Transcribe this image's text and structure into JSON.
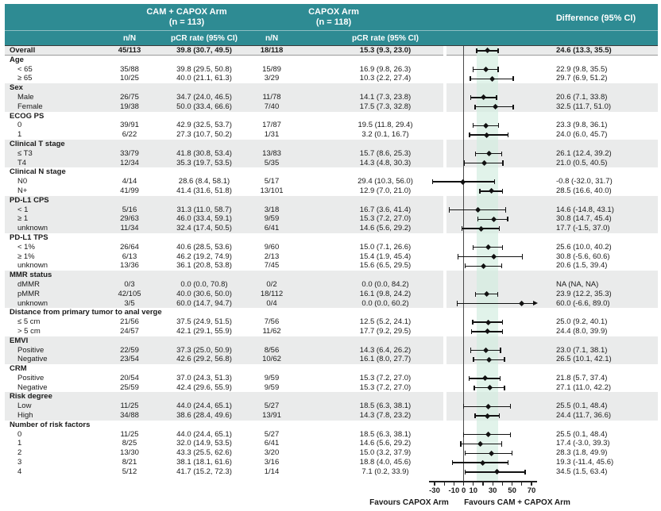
{
  "header": {
    "arm1": {
      "title": "CAM + CAPOX Arm",
      "n": "(n = 113)"
    },
    "arm2": {
      "title": "CAPOX Arm",
      "n": "(n = 118)"
    },
    "difference_title": "Difference (95% CI)",
    "subcolumns": {
      "n_over_N": "n/N",
      "pcr_rate": "pCR rate (95% CI)"
    }
  },
  "colors": {
    "header_teal": "#2e8b93",
    "row_shade": "#eaebeb",
    "overall_ci_band": "#d1ecde",
    "marker_black": "#111111",
    "zero_line_gray": "#4a4a4a"
  },
  "chart_data": {
    "type": "scatter",
    "variant": "forest_plot_subgroup_analysis",
    "x_axis": {
      "range": [
        -30,
        70
      ],
      "labeled_ticks": [
        -30,
        -10,
        0,
        10,
        30,
        50,
        70
      ],
      "minor_tick_step": 10,
      "reference_line_x": 0,
      "overall_ci_band": [
        13.3,
        35.5
      ]
    },
    "footer_labels": {
      "left": "Favours CAPOX Arm",
      "right": "Favours CAM + CAPOX Arm"
    },
    "rows": [
      {
        "kind": "data",
        "label": "Overall",
        "indent": false,
        "bold": true,
        "shade": true,
        "nN1": "45/113",
        "pcr1": "39.8 (30.7, 49.5)",
        "nN2": "18/118",
        "pcr2": "15.3 (9.3, 23.0)",
        "diff": "24.6 (13.3, 35.5)",
        "est": 24.6,
        "lo": 13.3,
        "hi": 35.5
      },
      {
        "kind": "group",
        "label": "Age",
        "shade": false
      },
      {
        "kind": "data",
        "label": "< 65",
        "indent": true,
        "shade": false,
        "nN1": "35/88",
        "pcr1": "39.8 (29.5, 50.8)",
        "nN2": "15/89",
        "pcr2": "16.9 (9.8, 26.3)",
        "diff": "22.9 (9.8, 35.5)",
        "est": 22.9,
        "lo": 9.8,
        "hi": 35.5
      },
      {
        "kind": "data",
        "label": "≥ 65",
        "indent": true,
        "shade": false,
        "nN1": "10/25",
        "pcr1": "40.0 (21.1, 61.3)",
        "nN2": "3/29",
        "pcr2": "10.3 (2.2, 27.4)",
        "diff": "29.7 (6.9, 51.2)",
        "est": 29.7,
        "lo": 6.9,
        "hi": 51.2
      },
      {
        "kind": "group",
        "label": "Sex",
        "shade": true
      },
      {
        "kind": "data",
        "label": "Male",
        "indent": true,
        "shade": true,
        "nN1": "26/75",
        "pcr1": "34.7 (24.0, 46.5)",
        "nN2": "11/78",
        "pcr2": "14.1 (7.3, 23.8)",
        "diff": "20.6 (7.1, 33.8)",
        "est": 20.6,
        "lo": 7.1,
        "hi": 33.8
      },
      {
        "kind": "data",
        "label": "Female",
        "indent": true,
        "shade": true,
        "nN1": "19/38",
        "pcr1": "50.0 (33.4, 66.6)",
        "nN2": "7/40",
        "pcr2": "17.5 (7.3, 32.8)",
        "diff": "32.5 (11.7, 51.0)",
        "est": 32.5,
        "lo": 11.7,
        "hi": 51.0
      },
      {
        "kind": "group",
        "label": "ECOG PS",
        "shade": false
      },
      {
        "kind": "data",
        "label": "0",
        "indent": true,
        "shade": false,
        "nN1": "39/91",
        "pcr1": "42.9 (32.5, 53.7)",
        "nN2": "17/87",
        "pcr2": "19.5 (11.8, 29.4)",
        "diff": "23.3 (9.8, 36.1)",
        "est": 23.3,
        "lo": 9.8,
        "hi": 36.1
      },
      {
        "kind": "data",
        "label": "1",
        "indent": true,
        "shade": false,
        "nN1": "6/22",
        "pcr1": "27.3 (10.7, 50.2)",
        "nN2": "1/31",
        "pcr2": "3.2 (0.1, 16.7)",
        "diff": "24.0 (6.0, 45.7)",
        "est": 24.0,
        "lo": 6.0,
        "hi": 45.7
      },
      {
        "kind": "group",
        "label": "Clinical T stage",
        "shade": true
      },
      {
        "kind": "data",
        "label": "≤ T3",
        "indent": true,
        "shade": true,
        "nN1": "33/79",
        "pcr1": "41.8 (30.8, 53.4)",
        "nN2": "13/83",
        "pcr2": "15.7 (8.6, 25.3)",
        "diff": "26.1 (12.4, 39.2)",
        "est": 26.1,
        "lo": 12.4,
        "hi": 39.2
      },
      {
        "kind": "data",
        "label": "T4",
        "indent": true,
        "shade": true,
        "nN1": "12/34",
        "pcr1": "35.3 (19.7, 53.5)",
        "nN2": "5/35",
        "pcr2": "14.3 (4.8, 30.3)",
        "diff": "21.0 (0.5, 40.5)",
        "est": 21.0,
        "lo": 0.5,
        "hi": 40.5
      },
      {
        "kind": "group",
        "label": "Clinical N stage",
        "shade": false
      },
      {
        "kind": "data",
        "label": "N0",
        "indent": true,
        "shade": false,
        "nN1": "4/14",
        "pcr1": "28.6 (8.4, 58.1)",
        "nN2": "5/17",
        "pcr2": "29.4 (10.3, 56.0)",
        "diff": "-0.8 (-32.0, 31.7)",
        "est": -0.8,
        "lo": -32.0,
        "hi": 31.7
      },
      {
        "kind": "data",
        "label": "N+",
        "indent": true,
        "shade": false,
        "nN1": "41/99",
        "pcr1": "41.4 (31.6, 51.8)",
        "nN2": "13/101",
        "pcr2": "12.9 (7.0, 21.0)",
        "diff": "28.5 (16.6, 40.0)",
        "est": 28.5,
        "lo": 16.6,
        "hi": 40.0
      },
      {
        "kind": "group",
        "label": "PD-L1 CPS",
        "shade": true
      },
      {
        "kind": "data",
        "label": "< 1",
        "indent": true,
        "shade": true,
        "nN1": "5/16",
        "pcr1": "31.3 (11.0, 58.7)",
        "nN2": "3/18",
        "pcr2": "16.7 (3.6, 41.4)",
        "diff": "14.6 (-14.8, 43.1)",
        "est": 14.6,
        "lo": -14.8,
        "hi": 43.1
      },
      {
        "kind": "data",
        "label": "≥ 1",
        "indent": true,
        "shade": true,
        "nN1": "29/63",
        "pcr1": "46.0 (33.4, 59.1)",
        "nN2": "9/59",
        "pcr2": "15.3 (7.2, 27.0)",
        "diff": "30.8 (14.7, 45.4)",
        "est": 30.8,
        "lo": 14.7,
        "hi": 45.4
      },
      {
        "kind": "data",
        "label": "unknown",
        "indent": true,
        "shade": true,
        "nN1": "11/34",
        "pcr1": "32.4 (17.4, 50.5)",
        "nN2": "6/41",
        "pcr2": "14.6 (5.6, 29.2)",
        "diff": "17.7 (-1.5, 37.0)",
        "est": 17.7,
        "lo": -1.5,
        "hi": 37.0
      },
      {
        "kind": "group",
        "label": "PD-L1 TPS",
        "shade": false
      },
      {
        "kind": "data",
        "label": "< 1%",
        "indent": true,
        "shade": false,
        "nN1": "26/64",
        "pcr1": "40.6 (28.5, 53.6)",
        "nN2": "9/60",
        "pcr2": "15.0 (7.1, 26.6)",
        "diff": "25.6 (10.0, 40.2)",
        "est": 25.6,
        "lo": 10.0,
        "hi": 40.2
      },
      {
        "kind": "data",
        "label": "≥ 1%",
        "indent": true,
        "shade": false,
        "nN1": "6/13",
        "pcr1": "46.2 (19.2, 74.9)",
        "nN2": "2/13",
        "pcr2": "15.4 (1.9, 45.4)",
        "diff": "30.8 (-5.6, 60.6)",
        "est": 30.8,
        "lo": -5.6,
        "hi": 60.6
      },
      {
        "kind": "data",
        "label": "unknown",
        "indent": true,
        "shade": false,
        "nN1": "13/36",
        "pcr1": "36.1 (20.8, 53.8)",
        "nN2": "7/45",
        "pcr2": "15.6 (6.5, 29.5)",
        "diff": "20.6 (1.5, 39.4)",
        "est": 20.6,
        "lo": 1.5,
        "hi": 39.4
      },
      {
        "kind": "group",
        "label": "MMR status",
        "shade": true
      },
      {
        "kind": "data",
        "label": "dMMR",
        "indent": true,
        "shade": true,
        "nN1": "0/3",
        "pcr1": "0.0 (0.0, 70.8)",
        "nN2": "0/2",
        "pcr2": "0.0 (0.0, 84.2)",
        "diff": "NA (NA, NA)",
        "est": null,
        "lo": null,
        "hi": null
      },
      {
        "kind": "data",
        "label": "pMMR",
        "indent": true,
        "shade": true,
        "nN1": "42/105",
        "pcr1": "40.0 (30.6, 50.0)",
        "nN2": "18/112",
        "pcr2": "16.1 (9.8, 24.2)",
        "diff": "23.9 (12.2, 35.3)",
        "est": 23.9,
        "lo": 12.2,
        "hi": 35.3
      },
      {
        "kind": "data",
        "label": "unknown",
        "indent": true,
        "shade": true,
        "nN1": "3/5",
        "pcr1": "60.0 (14.7, 94.7)",
        "nN2": "0/4",
        "pcr2": "0.0 (0.0, 60.2)",
        "diff": "60.0 (-6.6, 89.0)",
        "est": 60.0,
        "lo": -6.6,
        "hi": 89.0,
        "arrow": "right"
      },
      {
        "kind": "group",
        "label": "Distance from primary tumor to anal verge",
        "shade": false
      },
      {
        "kind": "data",
        "label": "≤ 5 cm",
        "indent": true,
        "shade": false,
        "nN1": "21/56",
        "pcr1": "37.5 (24.9, 51.5)",
        "nN2": "7/56",
        "pcr2": "12.5 (5.2, 24.1)",
        "diff": "25.0 (9.2, 40.1)",
        "est": 25.0,
        "lo": 9.2,
        "hi": 40.1
      },
      {
        "kind": "data",
        "label": "> 5 cm",
        "indent": true,
        "shade": false,
        "nN1": "24/57",
        "pcr1": "42.1 (29.1, 55.9)",
        "nN2": "11/62",
        "pcr2": "17.7 (9.2, 29.5)",
        "diff": "24.4 (8.0, 39.9)",
        "est": 24.4,
        "lo": 8.0,
        "hi": 39.9
      },
      {
        "kind": "group",
        "label": "EMVI",
        "shade": true
      },
      {
        "kind": "data",
        "label": "Positive",
        "indent": true,
        "shade": true,
        "nN1": "22/59",
        "pcr1": "37.3 (25.0, 50.9)",
        "nN2": "8/56",
        "pcr2": "14.3 (6.4, 26.2)",
        "diff": "23.0 (7.1, 38.1)",
        "est": 23.0,
        "lo": 7.1,
        "hi": 38.1
      },
      {
        "kind": "data",
        "label": "Negative",
        "indent": true,
        "shade": true,
        "nN1": "23/54",
        "pcr1": "42.6 (29.2, 56.8)",
        "nN2": "10/62",
        "pcr2": "16.1 (8.0, 27.7)",
        "diff": "26.5 (10.1, 42.1)",
        "est": 26.5,
        "lo": 10.1,
        "hi": 42.1
      },
      {
        "kind": "group",
        "label": "CRM",
        "shade": false
      },
      {
        "kind": "data",
        "label": "Positive",
        "indent": true,
        "shade": false,
        "nN1": "20/54",
        "pcr1": "37.0 (24.3, 51.3)",
        "nN2": "9/59",
        "pcr2": "15.3 (7.2, 27.0)",
        "diff": "21.8 (5.7, 37.4)",
        "est": 21.8,
        "lo": 5.7,
        "hi": 37.4
      },
      {
        "kind": "data",
        "label": "Negative",
        "indent": true,
        "shade": false,
        "nN1": "25/59",
        "pcr1": "42.4 (29.6, 55.9)",
        "nN2": "9/59",
        "pcr2": "15.3 (7.2, 27.0)",
        "diff": "27.1 (11.0, 42.2)",
        "est": 27.1,
        "lo": 11.0,
        "hi": 42.2
      },
      {
        "kind": "group",
        "label": "Risk degree",
        "shade": true
      },
      {
        "kind": "data",
        "label": "Low",
        "indent": true,
        "shade": true,
        "nN1": "11/25",
        "pcr1": "44.0 (24.4, 65.1)",
        "nN2": "5/27",
        "pcr2": "18.5 (6.3, 38.1)",
        "diff": "25.5 (0.1, 48.4)",
        "est": 25.5,
        "lo": 0.1,
        "hi": 48.4
      },
      {
        "kind": "data",
        "label": "High",
        "indent": true,
        "shade": true,
        "nN1": "34/88",
        "pcr1": "38.6 (28.4, 49.6)",
        "nN2": "13/91",
        "pcr2": "14.3 (7.8, 23.2)",
        "diff": "24.4 (11.7, 36.6)",
        "est": 24.4,
        "lo": 11.7,
        "hi": 36.6
      },
      {
        "kind": "group",
        "label": "Number of risk factors",
        "shade": false
      },
      {
        "kind": "data",
        "label": "0",
        "indent": true,
        "shade": false,
        "nN1": "11/25",
        "pcr1": "44.0 (24.4, 65.1)",
        "nN2": "5/27",
        "pcr2": "18.5 (6.3, 38.1)",
        "diff": "25.5 (0.1, 48.4)",
        "est": 25.5,
        "lo": 0.1,
        "hi": 48.4
      },
      {
        "kind": "data",
        "label": "1",
        "indent": true,
        "shade": false,
        "nN1": "8/25",
        "pcr1": "32.0 (14.9, 53.5)",
        "nN2": "6/41",
        "pcr2": "14.6 (5.6, 29.2)",
        "diff": "17.4 (-3.0, 39.3)",
        "est": 17.4,
        "lo": -3.0,
        "hi": 39.3
      },
      {
        "kind": "data",
        "label": "2",
        "indent": true,
        "shade": false,
        "nN1": "13/30",
        "pcr1": "43.3 (25.5, 62.6)",
        "nN2": "3/20",
        "pcr2": "15.0 (3.2, 37.9)",
        "diff": "28.3 (1.8, 49.9)",
        "est": 28.3,
        "lo": 1.8,
        "hi": 49.9
      },
      {
        "kind": "data",
        "label": "3",
        "indent": true,
        "shade": false,
        "nN1": "8/21",
        "pcr1": "38.1 (18.1, 61.6)",
        "nN2": "3/16",
        "pcr2": "18.8 (4.0, 45.6)",
        "diff": "19.3 (-11.4, 45.6)",
        "est": 19.3,
        "lo": -11.4,
        "hi": 45.6
      },
      {
        "kind": "data",
        "label": "4",
        "indent": true,
        "shade": false,
        "nN1": "5/12",
        "pcr1": "41.7 (15.2, 72.3)",
        "nN2": "1/14",
        "pcr2": "7.1 (0.2, 33.9)",
        "diff": "34.5 (1.5, 63.4)",
        "est": 34.5,
        "lo": 1.5,
        "hi": 63.4
      }
    ]
  }
}
